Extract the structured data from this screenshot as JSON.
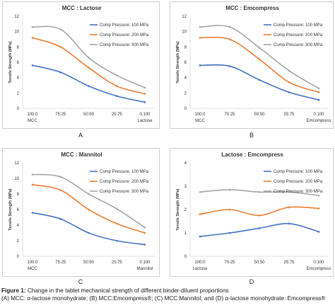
{
  "colors": {
    "series": [
      "#4472C4",
      "#ED7D31",
      "#A5A5A5"
    ],
    "panel_border": "#cfcfcf",
    "axis": "#d9d9d9"
  },
  "chart_data": [
    {
      "type": "line",
      "panel_label": "A",
      "title": "MCC : Lactose",
      "ylabel": "Tensile Strength (MPa)",
      "categories": [
        "100:0",
        "75:25",
        "50:50",
        "25:75",
        "0:100"
      ],
      "sublabels": {
        "first": "MCC",
        "last": "Lactose"
      },
      "ylim": [
        0,
        12
      ],
      "yticks": [
        0,
        2,
        4,
        6,
        8,
        10,
        12
      ],
      "legend_position": "right",
      "series": [
        {
          "name": "Comp Pressure: 100 MPa",
          "values": [
            5.6,
            4.7,
            2.9,
            1.6,
            0.8
          ]
        },
        {
          "name": "Comp Pressure: 200 MPa",
          "values": [
            9.2,
            8.0,
            5.3,
            2.9,
            1.9
          ]
        },
        {
          "name": "Comp Pressure: 300 MPa",
          "values": [
            10.6,
            10.3,
            6.6,
            4.3,
            2.7
          ]
        }
      ]
    },
    {
      "type": "line",
      "panel_label": "B",
      "title": "MCC : Emcompress",
      "ylabel": "Tensile Strength (MPa)",
      "categories": [
        "100:0",
        "75:25",
        "50:50",
        "25:75",
        "0:100"
      ],
      "sublabels": {
        "first": "MCC",
        "last": "Emcompress"
      },
      "ylim": [
        0,
        12
      ],
      "yticks": [
        0,
        2,
        4,
        6,
        8,
        10,
        12
      ],
      "legend_position": "right",
      "series": [
        {
          "name": "Comp Pressure: 100 MPa",
          "values": [
            5.6,
            5.5,
            3.7,
            2.1,
            1.1
          ]
        },
        {
          "name": "Comp Pressure: 200 MPa",
          "values": [
            9.2,
            9.0,
            6.4,
            3.4,
            2.1
          ]
        },
        {
          "name": "Comp Pressure: 300 MPa",
          "values": [
            10.6,
            10.6,
            7.9,
            4.9,
            2.6
          ]
        }
      ]
    },
    {
      "type": "line",
      "panel_label": "C",
      "title": "MCC : Mannitol",
      "ylabel": "Tensile Strength (MPa)",
      "categories": [
        "100:0",
        "75:25",
        "50:50",
        "25:75",
        "0:100"
      ],
      "sublabels": {
        "first": "MCC",
        "last": "Mannitol"
      },
      "ylim": [
        0,
        12
      ],
      "yticks": [
        0,
        2,
        4,
        6,
        8,
        10,
        12
      ],
      "legend_position": "right",
      "series": [
        {
          "name": "Comp Pressure: 100 MPa",
          "values": [
            5.6,
            4.8,
            3.0,
            2.0,
            1.5
          ]
        },
        {
          "name": "Comp Pressure: 200 MPa",
          "values": [
            9.2,
            8.5,
            6.0,
            4.2,
            3.0
          ]
        },
        {
          "name": "Comp Pressure: 300 MPa",
          "values": [
            10.5,
            10.2,
            8.0,
            6.1,
            3.7
          ]
        }
      ]
    },
    {
      "type": "line",
      "panel_label": "D",
      "title": "Lactose : Emcompress",
      "ylabel": "Tensile Strength (MPa)",
      "categories": [
        "100:0",
        "75:25",
        "50:50",
        "25:75",
        "0:100"
      ],
      "sublabels": {
        "first": "Lactose",
        "last": "Emcompress"
      },
      "ylim": [
        0,
        4
      ],
      "yticks": [
        0,
        1,
        2,
        3,
        4
      ],
      "legend_position": "right",
      "series": [
        {
          "name": "Comp Pressure: 100 MPa",
          "values": [
            0.85,
            1.0,
            1.2,
            1.4,
            1.05
          ]
        },
        {
          "name": "Comp Pressure: 200 MPa",
          "values": [
            1.8,
            2.0,
            1.75,
            2.1,
            2.05
          ]
        },
        {
          "name": "Comp Pressure: 300 MPa",
          "values": [
            2.75,
            2.85,
            2.75,
            2.75,
            2.6
          ]
        }
      ]
    }
  ],
  "caption": {
    "lead": "Figure 1:",
    "line1": " Change in the tablet mechanical strength of different binder-diluent proportions",
    "line2": "(A) MCC: α-lactose monohydrate; (B) MCC:Emcompress®; (C) MCC:Mannitol; and (D) α-lactose monohydrate: Emcompress®"
  }
}
